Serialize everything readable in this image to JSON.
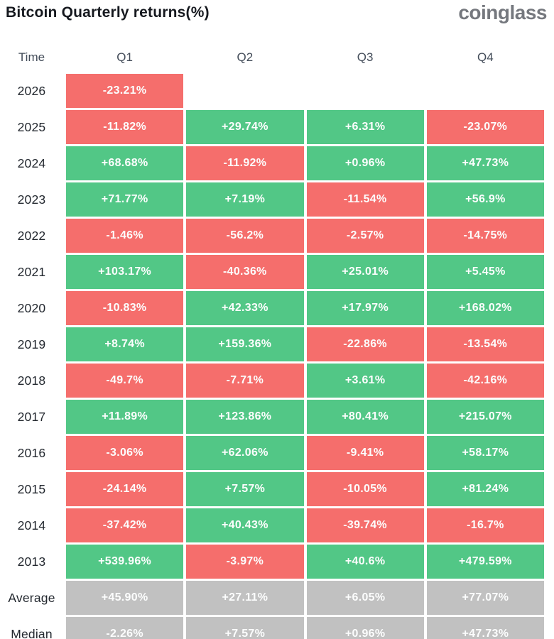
{
  "header": {
    "title": "Bitcoin Quarterly returns(%)",
    "logo_text": "coinglass"
  },
  "table": {
    "columns": [
      "Time",
      "Q1",
      "Q2",
      "Q3",
      "Q4"
    ],
    "rows": [
      {
        "label": "2026",
        "type": "year",
        "values": [
          "-23.21%",
          "",
          "",
          ""
        ]
      },
      {
        "label": "2025",
        "type": "year",
        "values": [
          "-11.82%",
          "+29.74%",
          "+6.31%",
          "-23.07%"
        ]
      },
      {
        "label": "2024",
        "type": "year",
        "values": [
          "+68.68%",
          "-11.92%",
          "+0.96%",
          "+47.73%"
        ]
      },
      {
        "label": "2023",
        "type": "year",
        "values": [
          "+71.77%",
          "+7.19%",
          "-11.54%",
          "+56.9%"
        ]
      },
      {
        "label": "2022",
        "type": "year",
        "values": [
          "-1.46%",
          "-56.2%",
          "-2.57%",
          "-14.75%"
        ]
      },
      {
        "label": "2021",
        "type": "year",
        "values": [
          "+103.17%",
          "-40.36%",
          "+25.01%",
          "+5.45%"
        ]
      },
      {
        "label": "2020",
        "type": "year",
        "values": [
          "-10.83%",
          "+42.33%",
          "+17.97%",
          "+168.02%"
        ]
      },
      {
        "label": "2019",
        "type": "year",
        "values": [
          "+8.74%",
          "+159.36%",
          "-22.86%",
          "-13.54%"
        ]
      },
      {
        "label": "2018",
        "type": "year",
        "values": [
          "-49.7%",
          "-7.71%",
          "+3.61%",
          "-42.16%"
        ]
      },
      {
        "label": "2017",
        "type": "year",
        "values": [
          "+11.89%",
          "+123.86%",
          "+80.41%",
          "+215.07%"
        ]
      },
      {
        "label": "2016",
        "type": "year",
        "values": [
          "-3.06%",
          "+62.06%",
          "-9.41%",
          "+58.17%"
        ]
      },
      {
        "label": "2015",
        "type": "year",
        "values": [
          "-24.14%",
          "+7.57%",
          "-10.05%",
          "+81.24%"
        ]
      },
      {
        "label": "2014",
        "type": "year",
        "values": [
          "-37.42%",
          "+40.43%",
          "-39.74%",
          "-16.7%"
        ]
      },
      {
        "label": "2013",
        "type": "year",
        "values": [
          "+539.96%",
          "-3.97%",
          "+40.6%",
          "+479.59%"
        ]
      },
      {
        "label": "Average",
        "type": "summary",
        "values": [
          "+45.90%",
          "+27.11%",
          "+6.05%",
          "+77.07%"
        ]
      },
      {
        "label": "Median",
        "type": "summary",
        "values": [
          "-2.26%",
          "+7.57%",
          "+0.96%",
          "+47.73%"
        ]
      }
    ]
  },
  "colors": {
    "positive": "#52c786",
    "negative": "#f56e6c",
    "summary": "#c1c1c1",
    "cell_text": "#fcfdfd",
    "title_text": "#16191f",
    "logo_text": "#75787e"
  },
  "chart_data": {
    "type": "heatmap",
    "title": "Bitcoin Quarterly returns(%)",
    "source_logo": "coinglass",
    "columns": [
      "Q1",
      "Q2",
      "Q3",
      "Q4"
    ],
    "row_labels": [
      "2026",
      "2025",
      "2024",
      "2023",
      "2022",
      "2021",
      "2020",
      "2019",
      "2018",
      "2017",
      "2016",
      "2015",
      "2014",
      "2013"
    ],
    "values": [
      [
        -23.21,
        null,
        null,
        null
      ],
      [
        -11.82,
        29.74,
        6.31,
        -23.07
      ],
      [
        68.68,
        -11.92,
        0.96,
        47.73
      ],
      [
        71.77,
        7.19,
        -11.54,
        56.9
      ],
      [
        -1.46,
        -56.2,
        -2.57,
        -14.75
      ],
      [
        103.17,
        -40.36,
        25.01,
        5.45
      ],
      [
        -10.83,
        42.33,
        17.97,
        168.02
      ],
      [
        8.74,
        159.36,
        -22.86,
        -13.54
      ],
      [
        -49.7,
        -7.71,
        3.61,
        -42.16
      ],
      [
        11.89,
        123.86,
        80.41,
        215.07
      ],
      [
        -3.06,
        62.06,
        -9.41,
        58.17
      ],
      [
        -24.14,
        7.57,
        -10.05,
        81.24
      ],
      [
        -37.42,
        40.43,
        -39.74,
        -16.7
      ],
      [
        539.96,
        -3.97,
        40.6,
        479.59
      ]
    ],
    "average": [
      45.9,
      27.11,
      6.05,
      77.07
    ],
    "median": [
      -2.26,
      7.57,
      0.96,
      47.73
    ],
    "unit": "%",
    "color_coding": "green = positive return, red = negative return, gray = Average/Median summary rows"
  }
}
